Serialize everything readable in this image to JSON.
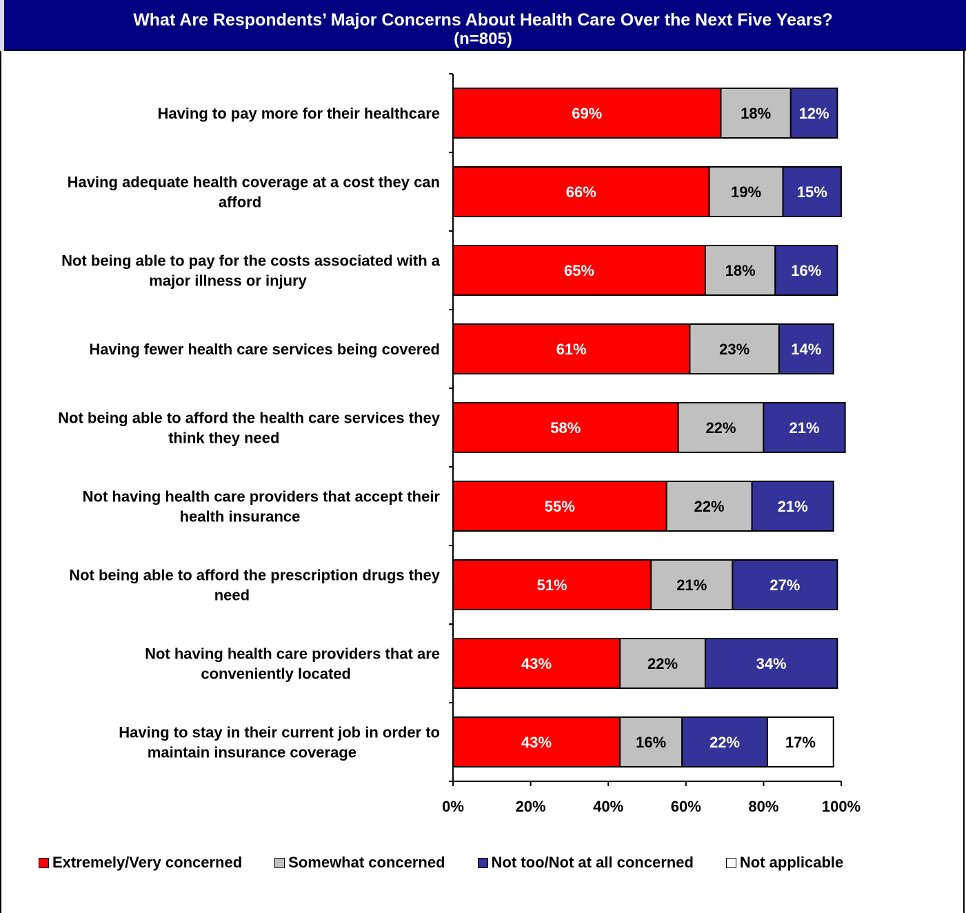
{
  "header": {
    "title": "What Are Respondents’ Major Concerns About Health Care Over the Next Five Years?",
    "subtitle": "(n=805)"
  },
  "colors": {
    "header_bg": "#000080",
    "extremely": "#ff0000",
    "somewhat": "#c0c0c0",
    "not_too": "#333399",
    "not_applicable": "#ffffff"
  },
  "chart_data": {
    "type": "bar",
    "orientation": "horizontal",
    "stacked": true,
    "title": "What Are Respondents’ Major Concerns About Health Care Over the Next Five Years?",
    "subtitle": "(n=805)",
    "xlim": [
      0,
      100
    ],
    "xticks": [
      "0%",
      "20%",
      "40%",
      "60%",
      "80%",
      "100%"
    ],
    "grid": false,
    "legend_position": "bottom",
    "categories": [
      [
        "Having to pay more for their healthcare"
      ],
      [
        "Having adequate health coverage at a cost they can",
        "afford"
      ],
      [
        "Not being able to pay for the costs associated with a",
        "major illness or injury"
      ],
      [
        "Having fewer health care services being covered"
      ],
      [
        "Not being able to afford the health care services they",
        "think they need"
      ],
      [
        "Not having health care providers that accept their",
        "health insurance"
      ],
      [
        "Not being able to afford the prescription drugs they",
        "need"
      ],
      [
        "Not having health care providers that are",
        "conveniently located"
      ],
      [
        "Having to stay in their current job in order to",
        "maintain insurance coverage"
      ]
    ],
    "series": [
      {
        "name": "Extremely/Very concerned",
        "color": "#ff0000",
        "label_color": "#ffffff",
        "values": [
          69,
          66,
          65,
          61,
          58,
          55,
          51,
          43,
          43
        ]
      },
      {
        "name": "Somewhat concerned",
        "color": "#c0c0c0",
        "label_color": "#000000",
        "values": [
          18,
          19,
          18,
          23,
          22,
          22,
          21,
          22,
          16
        ]
      },
      {
        "name": "Not too/Not at all concerned",
        "color": "#333399",
        "label_color": "#ffffff",
        "values": [
          12,
          15,
          16,
          14,
          21,
          21,
          27,
          34,
          22
        ]
      },
      {
        "name": "Not applicable",
        "color": "#ffffff",
        "label_color": "#000000",
        "values": [
          null,
          null,
          null,
          null,
          null,
          null,
          null,
          null,
          17
        ]
      }
    ]
  }
}
